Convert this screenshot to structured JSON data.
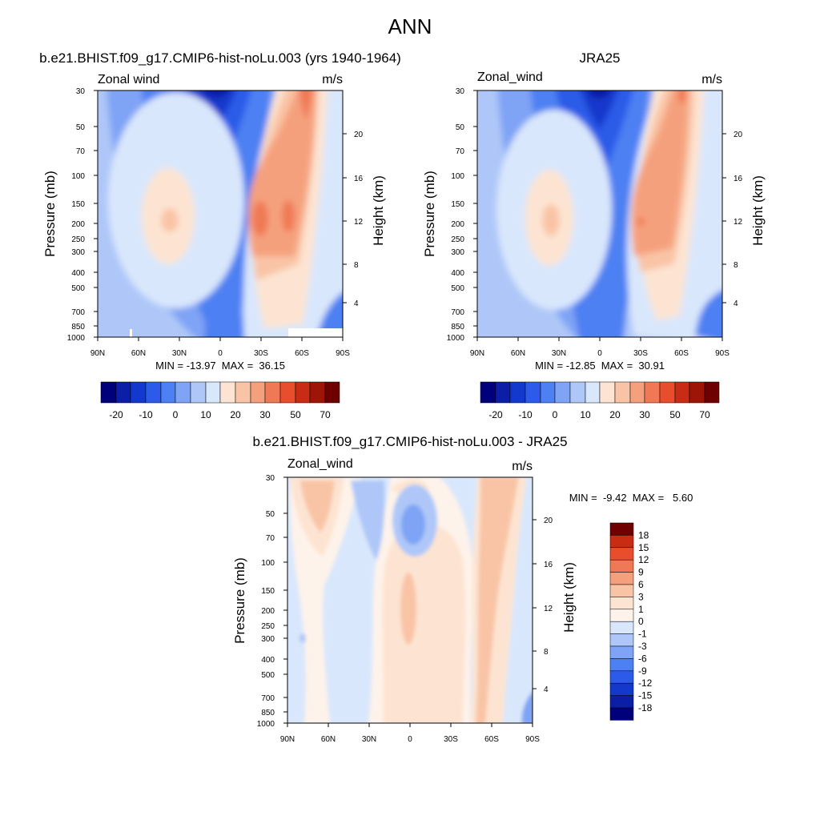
{
  "page_title": "ANN",
  "chart_data": [
    {
      "type": "contour",
      "title": "b.e21.BHIST.f09_g17.CMIP6-hist-noLu.003 (yrs 1940-1964)",
      "left_string": "Zonal wind",
      "right_string": "m/s",
      "xlabel": "",
      "ylabel": "Pressure (mb)",
      "y2label": "Height (km)",
      "x_ticks": [
        "90N",
        "60N",
        "30N",
        "0",
        "30S",
        "60S",
        "90S"
      ],
      "y_ticks": [
        "30",
        "50",
        "70",
        "100",
        "150",
        "200",
        "250",
        "300",
        "400",
        "500",
        "700",
        "850",
        "1000"
      ],
      "y2_ticks": [
        "20",
        "16",
        "12",
        "8",
        "4"
      ],
      "stats": {
        "min": -13.97,
        "max": 36.15
      },
      "stats_text": "MIN = -13.97  MAX =  36.15",
      "levels": [
        "-20",
        "-10",
        "0",
        "10",
        "20",
        "30",
        "50",
        "70"
      ],
      "features": [
        {
          "name": "subtropical-jet-NH",
          "lat": 30,
          "p": 200,
          "value": 22
        },
        {
          "name": "subtropical-jet-SH",
          "lat": -40,
          "p": 200,
          "value": 36
        },
        {
          "name": "tropical-easterlies",
          "lat": 5,
          "p": 50,
          "value": -13
        }
      ]
    },
    {
      "type": "contour",
      "title": "JRA25",
      "left_string": "Zonal_wind",
      "right_string": "m/s",
      "xlabel": "",
      "ylabel": "Pressure (mb)",
      "y2label": "Height (km)",
      "x_ticks": [
        "90N",
        "60N",
        "30N",
        "0",
        "30S",
        "60S",
        "90S"
      ],
      "y_ticks": [
        "30",
        "50",
        "70",
        "100",
        "150",
        "200",
        "250",
        "300",
        "400",
        "500",
        "700",
        "850",
        "1000"
      ],
      "y2_ticks": [
        "20",
        "16",
        "12",
        "8",
        "4"
      ],
      "stats": {
        "min": -12.85,
        "max": 30.91
      },
      "stats_text": "MIN = -12.85  MAX =  30.91",
      "levels": [
        "-20",
        "-10",
        "0",
        "10",
        "20",
        "30",
        "50",
        "70"
      ],
      "features": [
        {
          "name": "subtropical-jet-NH",
          "lat": 35,
          "p": 200,
          "value": 22
        },
        {
          "name": "subtropical-jet-SH",
          "lat": -30,
          "p": 200,
          "value": 31
        },
        {
          "name": "tropical-easterlies",
          "lat": 5,
          "p": 50,
          "value": -12
        }
      ]
    },
    {
      "type": "contour",
      "title": "b.e21.BHIST.f09_g17.CMIP6-hist-noLu.003 - JRA25",
      "left_string": "Zonal_wind",
      "right_string": "m/s",
      "xlabel": "",
      "ylabel": "Pressure (mb)",
      "y2label": "Height (km)",
      "x_ticks": [
        "90N",
        "60N",
        "30N",
        "0",
        "30S",
        "60S",
        "90S"
      ],
      "y_ticks": [
        "30",
        "50",
        "70",
        "100",
        "150",
        "200",
        "250",
        "300",
        "400",
        "500",
        "700",
        "850",
        "1000"
      ],
      "y2_ticks": [
        "20",
        "16",
        "12",
        "8",
        "4"
      ],
      "stats": {
        "min": -9.42,
        "max": 5.6
      },
      "stats_text": "MIN =  -9.42  MAX =   5.60",
      "levels": [
        "18",
        "15",
        "12",
        "9",
        "6",
        "3",
        "1",
        "0",
        "-1",
        "-3",
        "-6",
        "-9",
        "-12",
        "-15",
        "-18"
      ],
      "features": [
        {
          "name": "positive-diff-NH-midlat",
          "lat": 65,
          "p": 70,
          "value": 5
        },
        {
          "name": "positive-diff-SH-jet",
          "lat": 0,
          "p": 200,
          "value": 5
        },
        {
          "name": "negative-diff-strat-equator",
          "lat": 0,
          "p": 60,
          "value": -9
        }
      ]
    }
  ],
  "colors": {
    "abs_scale": [
      "#00007a",
      "#0a1fa6",
      "#1338cc",
      "#2b5be8",
      "#4d80f2",
      "#7fa3f5",
      "#aec7f8",
      "#d9e7fc",
      "#fde4d2",
      "#f9c4a6",
      "#f5a07d",
      "#f07955",
      "#e84d2c",
      "#c82c14",
      "#9c1507",
      "#6e0000"
    ],
    "diff_scale": [
      "#00007a",
      "#0a1fa6",
      "#1338cc",
      "#2b5be8",
      "#4d80f2",
      "#7fa3f5",
      "#aec7f8",
      "#d9e7fc",
      "#fef3ea",
      "#fde4d2",
      "#f9c4a6",
      "#f5a07d",
      "#f07955",
      "#e84d2c",
      "#c82c14",
      "#6e0000"
    ]
  }
}
